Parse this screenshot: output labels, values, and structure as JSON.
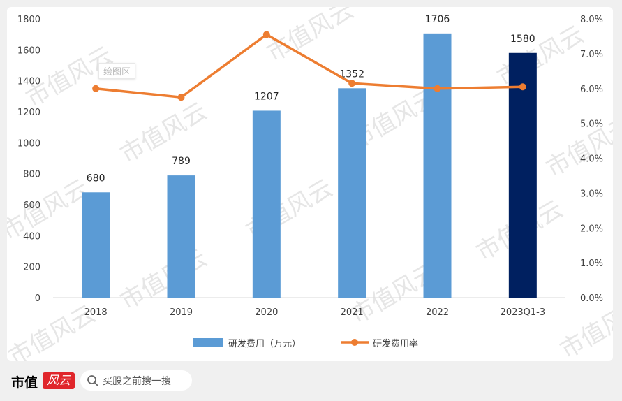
{
  "chart_data": {
    "type": "bar+line",
    "categories": [
      "2018",
      "2019",
      "2020",
      "2021",
      "2022",
      "2023Q1-3"
    ],
    "series": [
      {
        "name": "研发费用（万元）",
        "type": "bar",
        "axis": "left",
        "values": [
          680,
          789,
          1207,
          1352,
          1706,
          1580
        ],
        "data_labels": [
          "680",
          "789",
          "1207",
          "1352",
          "1706",
          "1580"
        ],
        "colors": [
          "#5b9bd5",
          "#5b9bd5",
          "#5b9bd5",
          "#5b9bd5",
          "#5b9bd5",
          "#002060"
        ]
      },
      {
        "name": "研发费用率",
        "type": "line",
        "axis": "right",
        "values": [
          6.0,
          5.75,
          7.55,
          6.15,
          6.0,
          6.05
        ],
        "color": "#ed7d31"
      }
    ],
    "y_left": {
      "range": [
        0,
        1800
      ],
      "ticks": [
        "0",
        "200",
        "400",
        "600",
        "800",
        "1000",
        "1200",
        "1400",
        "1600",
        "1800"
      ]
    },
    "y_right": {
      "range": [
        0,
        8
      ],
      "ticks": [
        "0.0%",
        "1.0%",
        "2.0%",
        "3.0%",
        "4.0%",
        "5.0%",
        "6.0%",
        "7.0%",
        "8.0%"
      ]
    },
    "legend": {
      "position": "bottom"
    },
    "grid": false
  },
  "tooltip_text": "绘图区",
  "watermark_text": "市值风云",
  "footer": {
    "logo_text": "市值",
    "logo_badge_text": "风云",
    "search_icon": "search-icon",
    "search_placeholder": "买股之前搜一搜"
  }
}
